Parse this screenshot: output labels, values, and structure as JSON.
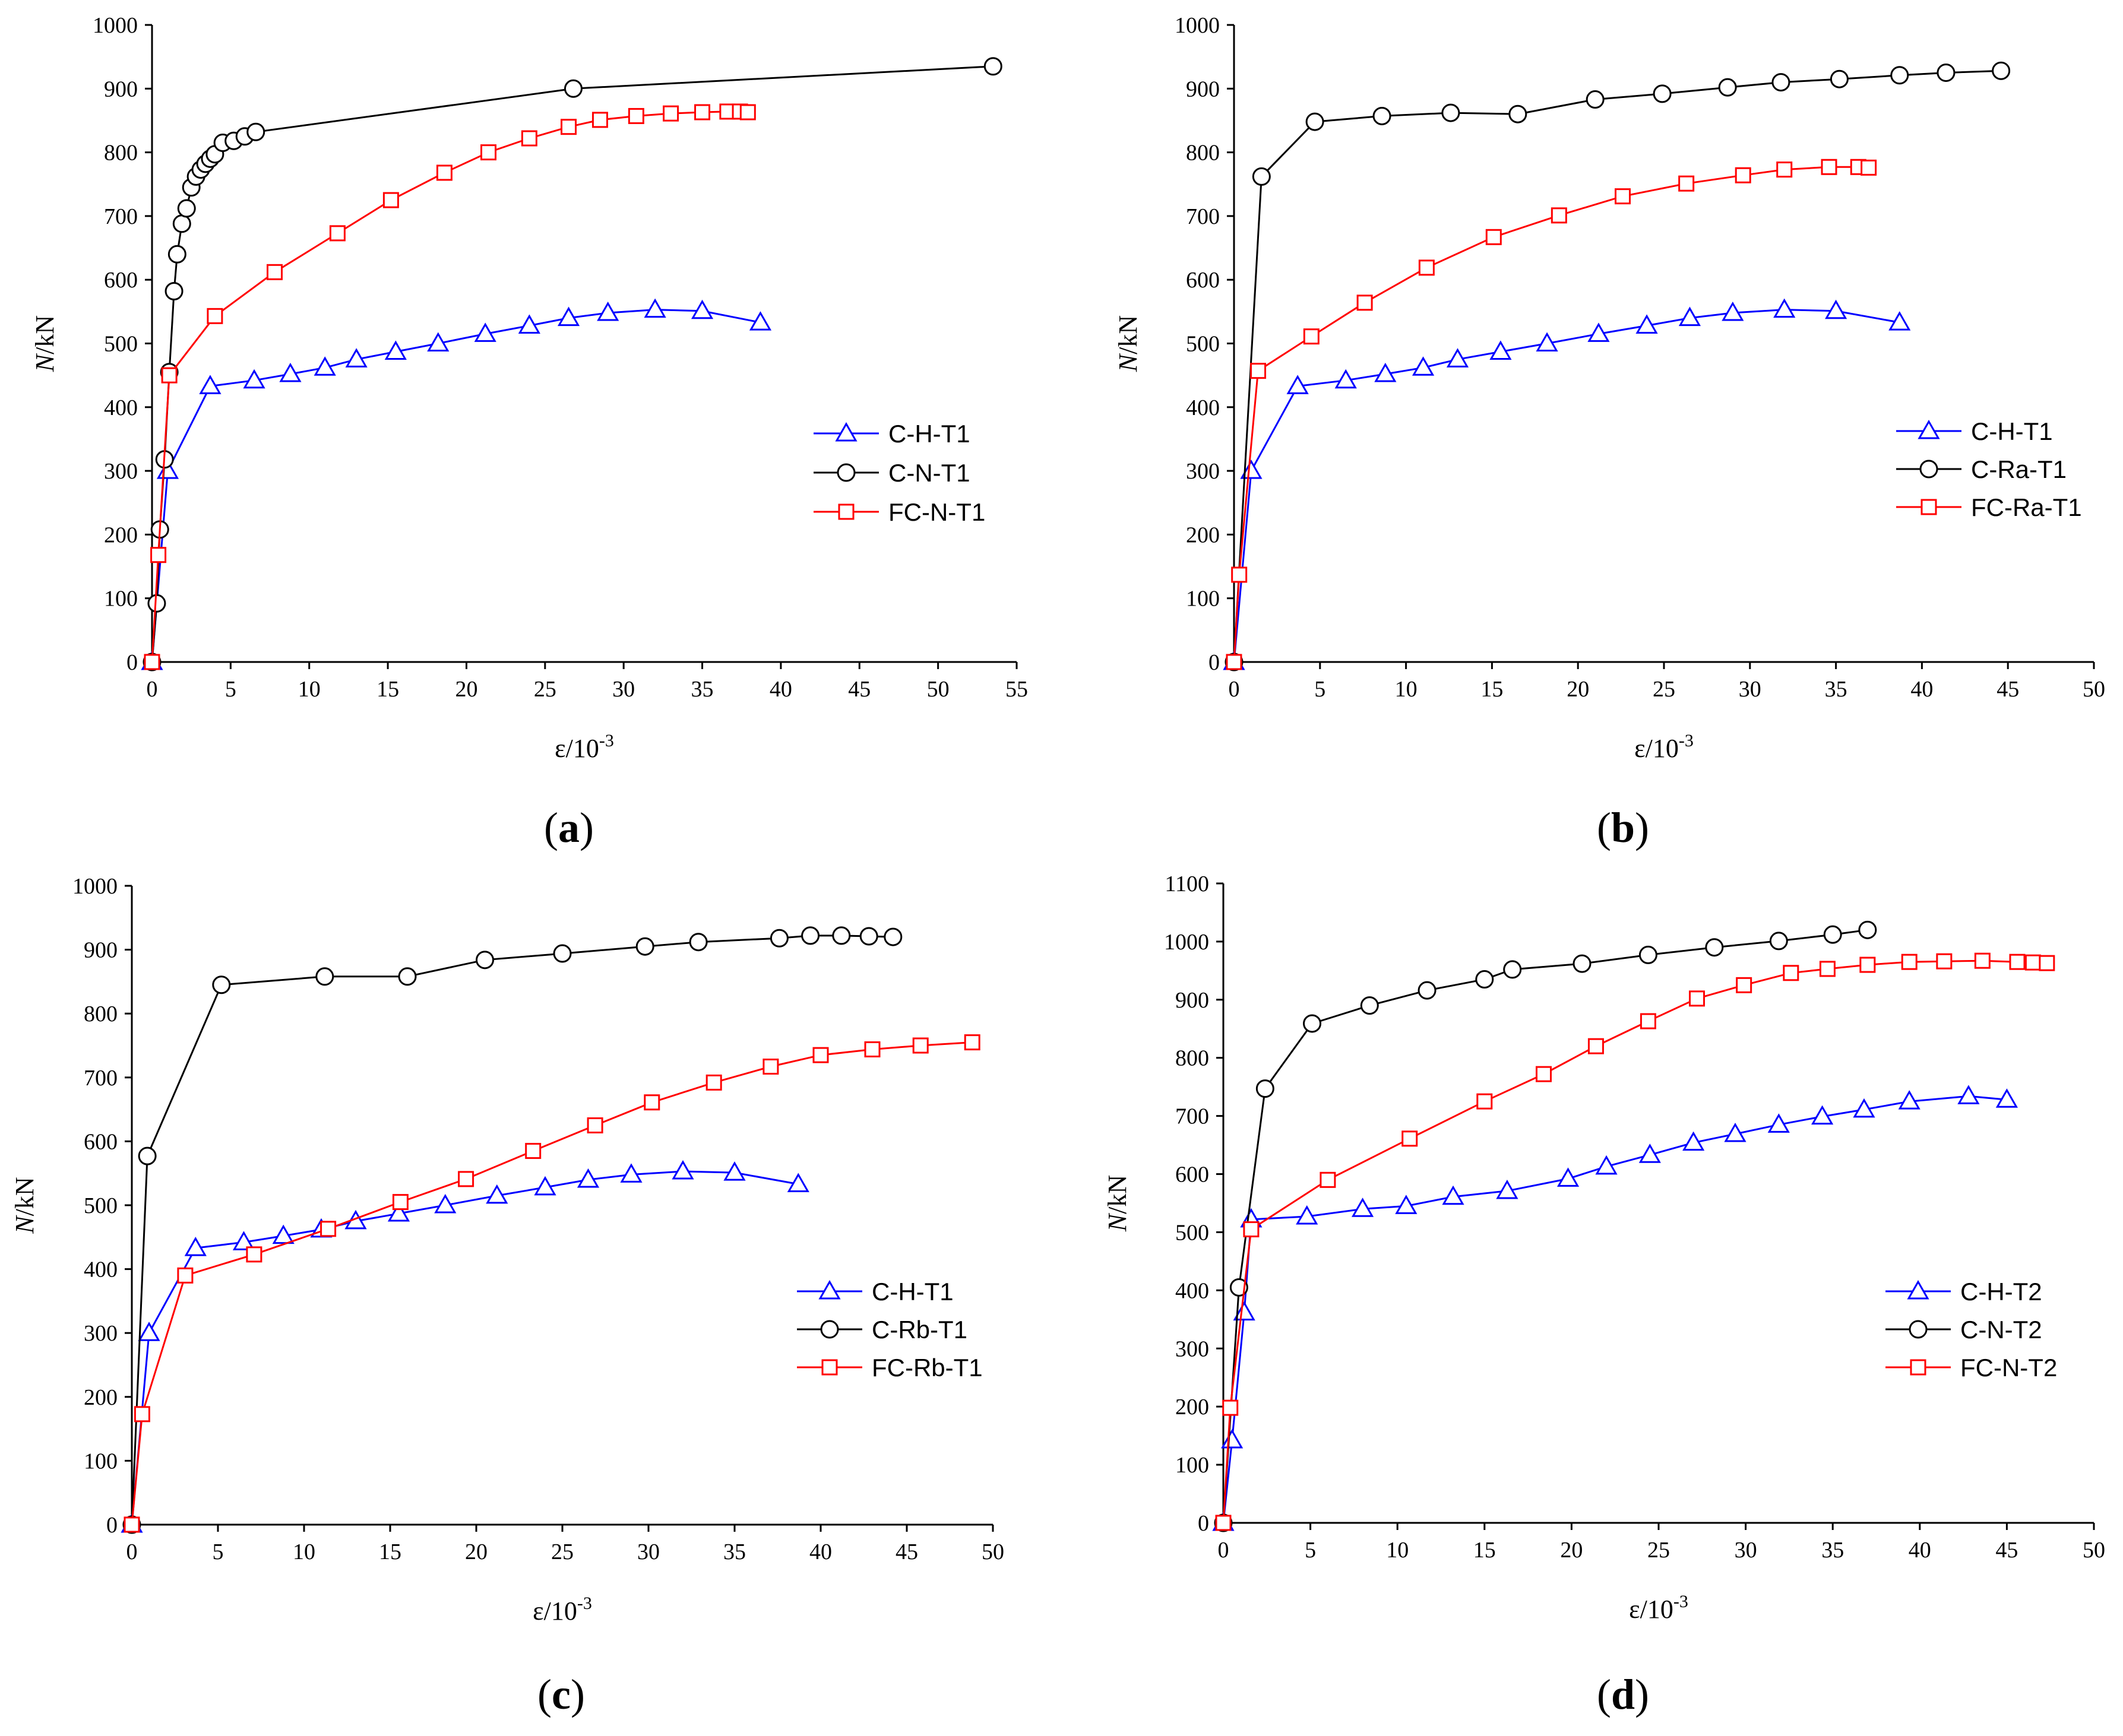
{
  "chart_data": [
    {
      "type": "line",
      "panel_label": "(a)",
      "xlabel": "ε/10",
      "xlabel_sup": "-3",
      "ylabel_italic": "N",
      "ylabel_rest": "/kN",
      "xlim": [
        0,
        55
      ],
      "ylim": [
        0,
        1000
      ],
      "xticks": [
        0,
        5,
        10,
        15,
        20,
        25,
        30,
        35,
        40,
        45,
        50,
        55
      ],
      "yticks": [
        0,
        100,
        200,
        300,
        400,
        500,
        600,
        700,
        800,
        900,
        1000
      ],
      "legend_position": "center-right",
      "series": [
        {
          "name": "C-H-T1",
          "color": "#0000ff",
          "marker": "triangle",
          "x": [
            0,
            1.0,
            3.7,
            6.5,
            8.8,
            11,
            13,
            15.5,
            18.2,
            21.2,
            24,
            26.5,
            29,
            32,
            35,
            38.7
          ],
          "y": [
            0,
            300,
            433,
            442,
            452,
            462,
            475,
            487,
            500,
            515,
            528,
            540,
            548,
            553,
            551,
            533
          ]
        },
        {
          "name": "C-N-T1",
          "color": "#000000",
          "marker": "circle",
          "x": [
            0,
            0.3,
            0.5,
            0.8,
            1.1,
            1.4,
            1.6,
            1.9,
            2.2,
            2.5,
            2.8,
            3.1,
            3.4,
            3.7,
            4.0,
            4.5,
            5.2,
            5.9,
            6.6,
            26.8,
            53.5
          ],
          "y": [
            0,
            92,
            208,
            318,
            455,
            582,
            640,
            688,
            712,
            745,
            762,
            773,
            782,
            790,
            797,
            815,
            818,
            825,
            832,
            900,
            935
          ]
        },
        {
          "name": "FC-N-T1",
          "color": "#ff0000",
          "marker": "square",
          "x": [
            0,
            0.4,
            1.1,
            4.0,
            7.8,
            11.8,
            15.2,
            18.6,
            21.4,
            24.0,
            26.5,
            28.5,
            30.8,
            33.0,
            35.0,
            36.6,
            37.4,
            37.9
          ],
          "y": [
            0,
            168,
            450,
            543,
            612,
            673,
            725,
            768,
            800,
            822,
            840,
            851,
            857,
            861,
            863,
            864,
            864,
            863
          ]
        }
      ]
    },
    {
      "type": "line",
      "panel_label": "(b)",
      "xlabel": "ε/10",
      "xlabel_sup": "-3",
      "ylabel_italic": "N",
      "ylabel_rest": "/kN",
      "xlim": [
        0,
        50
      ],
      "ylim": [
        0,
        1000
      ],
      "xticks": [
        0,
        5,
        10,
        15,
        20,
        25,
        30,
        35,
        40,
        45,
        50
      ],
      "yticks": [
        0,
        100,
        200,
        300,
        400,
        500,
        600,
        700,
        800,
        900,
        1000
      ],
      "legend_position": "center-right",
      "series": [
        {
          "name": "C-H-T1",
          "color": "#0000ff",
          "marker": "triangle",
          "x": [
            0,
            1.0,
            3.7,
            6.5,
            8.8,
            11,
            13,
            15.5,
            18.2,
            21.2,
            24,
            26.5,
            29,
            32,
            35,
            38.7
          ],
          "y": [
            0,
            300,
            433,
            442,
            452,
            462,
            475,
            487,
            500,
            515,
            528,
            540,
            548,
            553,
            551,
            533
          ]
        },
        {
          "name": "C-Ra-T1",
          "color": "#000000",
          "marker": "circle",
          "x": [
            0,
            1.6,
            4.7,
            8.6,
            12.6,
            16.5,
            21.0,
            24.9,
            28.7,
            31.8,
            35.2,
            38.7,
            41.4,
            44.6
          ],
          "y": [
            0,
            762,
            848,
            857,
            862,
            860,
            883,
            892,
            902,
            910,
            915,
            921,
            925,
            928
          ]
        },
        {
          "name": "FC-Ra-T1",
          "color": "#ff0000",
          "marker": "square",
          "x": [
            0,
            0.3,
            1.4,
            4.5,
            7.6,
            11.2,
            15.1,
            18.9,
            22.6,
            26.3,
            29.6,
            32.0,
            34.6,
            36.3,
            36.9
          ],
          "y": [
            0,
            137,
            457,
            511,
            564,
            619,
            667,
            701,
            731,
            751,
            764,
            773,
            777,
            777,
            776
          ]
        }
      ]
    },
    {
      "type": "line",
      "panel_label": "(c)",
      "xlabel": "ε/10",
      "xlabel_sup": "-3",
      "ylabel_italic": "N",
      "ylabel_rest": "/kN",
      "xlim": [
        0,
        50
      ],
      "ylim": [
        0,
        1000
      ],
      "xticks": [
        0,
        5,
        10,
        15,
        20,
        25,
        30,
        35,
        40,
        45,
        50
      ],
      "yticks": [
        0,
        100,
        200,
        300,
        400,
        500,
        600,
        700,
        800,
        900,
        1000
      ],
      "legend_position": "center-right",
      "series": [
        {
          "name": "C-H-T1",
          "color": "#0000ff",
          "marker": "triangle",
          "x": [
            0,
            1.0,
            3.7,
            6.5,
            8.8,
            11,
            13,
            15.5,
            18.2,
            21.2,
            24,
            26.5,
            29,
            32,
            35,
            38.7
          ],
          "y": [
            0,
            300,
            433,
            442,
            452,
            462,
            475,
            487,
            500,
            515,
            528,
            540,
            548,
            553,
            551,
            533
          ]
        },
        {
          "name": "C-Rb-T1",
          "color": "#000000",
          "marker": "circle",
          "x": [
            0,
            0.9,
            5.2,
            11.2,
            16.0,
            20.5,
            25.0,
            29.8,
            32.9,
            37.6,
            39.4,
            41.2,
            42.8,
            44.2
          ],
          "y": [
            0,
            577,
            845,
            858,
            858,
            884,
            894,
            905,
            912,
            918,
            922,
            922,
            921,
            920
          ]
        },
        {
          "name": "FC-Rb-T1",
          "color": "#ff0000",
          "marker": "square",
          "x": [
            0,
            0.6,
            3.1,
            7.1,
            11.4,
            15.6,
            19.4,
            23.3,
            26.9,
            30.2,
            33.8,
            37.1,
            40.0,
            43.0,
            45.8,
            48.8
          ],
          "y": [
            0,
            173,
            390,
            423,
            463,
            505,
            541,
            585,
            625,
            661,
            692,
            717,
            735,
            744,
            750,
            755
          ]
        }
      ]
    },
    {
      "type": "line",
      "panel_label": "(d)",
      "xlabel": "ε/10",
      "xlabel_sup": "-3",
      "ylabel_italic": "N",
      "ylabel_rest": "/kN",
      "xlim": [
        0,
        50
      ],
      "ylim": [
        0,
        1100
      ],
      "xticks": [
        0,
        5,
        10,
        15,
        20,
        25,
        30,
        35,
        40,
        45,
        50
      ],
      "yticks": [
        0,
        100,
        200,
        300,
        400,
        500,
        600,
        700,
        800,
        900,
        1000,
        1100
      ],
      "legend_position": "center-right",
      "series": [
        {
          "name": "C-H-T2",
          "color": "#0000ff",
          "marker": "triangle",
          "x": [
            0,
            0.5,
            1.2,
            1.6,
            4.8,
            8.0,
            10.5,
            13.2,
            16.3,
            19.8,
            22.0,
            24.5,
            27.0,
            29.4,
            31.9,
            34.4,
            36.8,
            39.4,
            42.8,
            45.0
          ],
          "y": [
            0,
            142,
            362,
            522,
            527,
            540,
            545,
            561,
            571,
            592,
            613,
            633,
            654,
            669,
            685,
            699,
            711,
            725,
            734,
            728
          ]
        },
        {
          "name": "C-N-T2",
          "color": "#000000",
          "marker": "circle",
          "x": [
            0,
            0.9,
            2.4,
            5.1,
            8.4,
            11.7,
            15.0,
            16.6,
            20.6,
            24.4,
            28.2,
            31.9,
            35.0,
            37.0
          ],
          "y": [
            0,
            405,
            747,
            859,
            890,
            916,
            935,
            952,
            962,
            977,
            990,
            1001,
            1012,
            1020
          ]
        },
        {
          "name": "FC-N-T2",
          "color": "#ff0000",
          "marker": "square",
          "x": [
            0,
            0.4,
            1.6,
            6.0,
            10.7,
            15.0,
            18.4,
            21.4,
            24.4,
            27.2,
            29.9,
            32.6,
            34.7,
            37.0,
            39.4,
            41.4,
            43.6,
            45.6,
            46.5,
            47.3
          ],
          "y": [
            0,
            198,
            505,
            590,
            661,
            725,
            772,
            820,
            863,
            902,
            925,
            946,
            953,
            960,
            965,
            966,
            967,
            965,
            964,
            963
          ]
        }
      ]
    }
  ]
}
